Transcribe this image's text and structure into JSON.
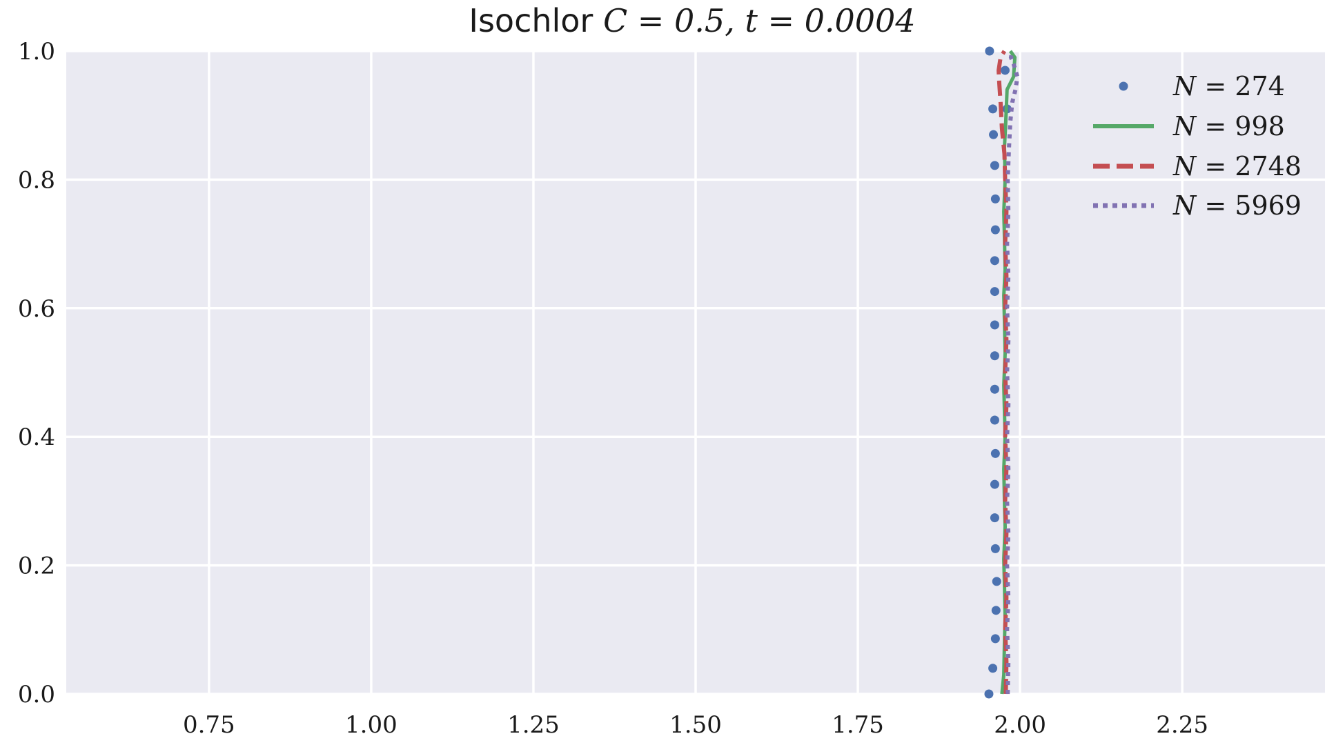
{
  "chart_data": {
    "type": "line",
    "title": {
      "word": "Isochlor",
      "math": "C = 0.5, t = 0.0004"
    },
    "xlabel": "",
    "ylabel": "",
    "xlim": [
      0.53,
      2.47
    ],
    "ylim": [
      0.0,
      1.0
    ],
    "xticks": [
      0.75,
      1.0,
      1.25,
      1.5,
      1.75,
      2.0,
      2.25
    ],
    "xtick_labels": [
      "0.75",
      "1.00",
      "1.25",
      "1.50",
      "1.75",
      "2.00",
      "2.25"
    ],
    "yticks": [
      0.0,
      0.2,
      0.4,
      0.6,
      0.8,
      1.0
    ],
    "ytick_labels": [
      "0.0",
      "0.2",
      "0.4",
      "0.6",
      "0.8",
      "1.0"
    ],
    "grid": true,
    "legend_position": "top-right",
    "colors": {
      "background": "#eaeaf2",
      "grid": "#ffffff",
      "s1": "#4c72b0",
      "s2": "#55a868",
      "s3": "#c44e52",
      "s4": "#8172b2"
    },
    "series": [
      {
        "name": "N = 274",
        "style": "markers",
        "x": [
          1.952,
          1.958,
          1.962,
          1.963,
          1.964,
          1.962,
          1.961,
          1.961,
          1.962,
          1.961,
          1.961,
          1.961,
          1.961,
          1.961,
          1.961,
          1.962,
          1.962,
          1.961,
          1.959,
          1.958,
          1.977,
          1.98,
          1.953
        ],
        "y": [
          0.0,
          0.04,
          0.086,
          0.13,
          0.175,
          0.226,
          0.274,
          0.326,
          0.374,
          0.426,
          0.474,
          0.526,
          0.574,
          0.626,
          0.674,
          0.722,
          0.77,
          0.822,
          0.87,
          0.91,
          0.97,
          0.91,
          1.0
        ]
      },
      {
        "name": "N = 998",
        "style": "solid",
        "x": [
          1.972,
          1.975,
          1.976,
          1.977,
          1.976,
          1.975,
          1.977,
          1.976,
          1.975,
          1.977,
          1.976,
          1.975,
          1.977,
          1.976,
          1.975,
          1.977,
          1.976,
          1.975,
          1.977,
          1.976,
          1.978,
          1.98,
          1.99,
          1.992,
          1.985
        ],
        "y": [
          0.0,
          0.03,
          0.08,
          0.12,
          0.17,
          0.21,
          0.26,
          0.3,
          0.35,
          0.4,
          0.44,
          0.48,
          0.53,
          0.58,
          0.62,
          0.66,
          0.71,
          0.75,
          0.8,
          0.85,
          0.89,
          0.94,
          0.96,
          0.99,
          1.0
        ]
      },
      {
        "name": "N = 2748",
        "style": "dashed",
        "x": [
          1.978,
          1.979,
          1.977,
          1.979,
          1.977,
          1.979,
          1.977,
          1.979,
          1.977,
          1.979,
          1.977,
          1.979,
          1.977,
          1.979,
          1.977,
          1.979,
          1.977,
          1.976,
          1.972,
          1.97,
          1.968,
          1.967,
          1.97,
          1.976
        ],
        "y": [
          0.0,
          0.05,
          0.1,
          0.15,
          0.2,
          0.25,
          0.3,
          0.35,
          0.4,
          0.45,
          0.5,
          0.55,
          0.6,
          0.65,
          0.7,
          0.75,
          0.8,
          0.84,
          0.88,
          0.92,
          0.95,
          0.97,
          0.99,
          1.0
        ]
      },
      {
        "name": "N = 5969",
        "style": "dotted",
        "x": [
          1.981,
          1.982,
          1.98,
          1.982,
          1.98,
          1.982,
          1.98,
          1.982,
          1.98,
          1.982,
          1.98,
          1.982,
          1.98,
          1.982,
          1.98,
          1.982,
          1.981,
          1.983,
          1.985,
          1.988,
          1.993,
          1.996,
          1.99,
          1.986,
          1.988
        ],
        "y": [
          0.0,
          0.05,
          0.1,
          0.15,
          0.2,
          0.25,
          0.3,
          0.35,
          0.4,
          0.45,
          0.5,
          0.55,
          0.6,
          0.65,
          0.7,
          0.75,
          0.8,
          0.85,
          0.89,
          0.92,
          0.94,
          0.96,
          0.98,
          0.99,
          1.0
        ]
      }
    ]
  },
  "legend": {
    "entries": [
      {
        "prefix": "N",
        "value": "= 274"
      },
      {
        "prefix": "N",
        "value": "= 998"
      },
      {
        "prefix": "N",
        "value": "= 2748"
      },
      {
        "prefix": "N",
        "value": "= 5969"
      }
    ]
  }
}
